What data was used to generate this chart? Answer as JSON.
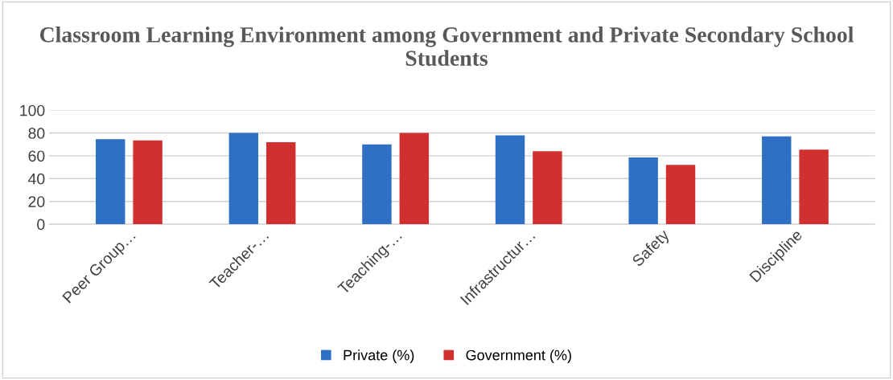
{
  "chart_data": {
    "type": "bar",
    "title": "Classroom Learning Environment among Government and Private Secondary School Students",
    "categories": [
      "Peer Group…",
      "Teacher-…",
      "Teaching-…",
      "Infrastructur…",
      "Safety",
      "Discipline"
    ],
    "series": [
      {
        "name": "Private (%)",
        "color": "#2f6fc4",
        "values": [
          74.5,
          80,
          70,
          78,
          58.5,
          77
        ]
      },
      {
        "name": "Government (%)",
        "color": "#d03030",
        "values": [
          73.5,
          72,
          80,
          64,
          52,
          65.5
        ]
      }
    ],
    "ylim": [
      0,
      100
    ],
    "yticks": [
      0,
      20,
      40,
      60,
      80,
      100
    ],
    "grid": "y",
    "legend": "bottom"
  }
}
